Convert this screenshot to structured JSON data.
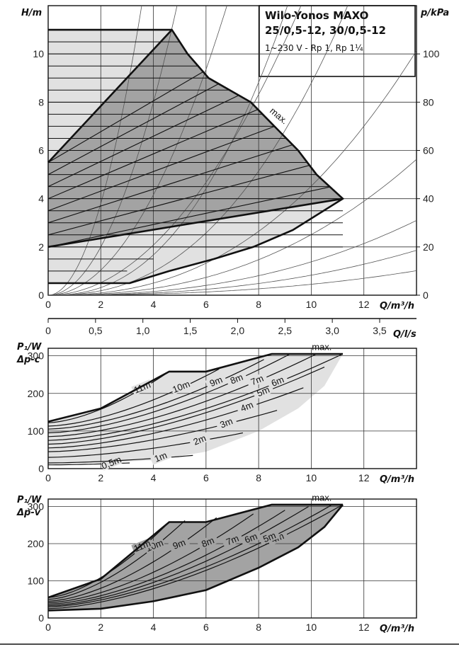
{
  "chart_data": [
    {
      "type": "line",
      "panel": "head",
      "title": "Wilo-Yonos MAXO",
      "subtitle": "25/0,5-12, 30/0,5-12",
      "spec": "1~230 V - Rp 1, Rp 1¼",
      "xlabel": "Q/m³/h",
      "ylabel": "H/m",
      "y2label": "p/kPa",
      "xlim": [
        0,
        14
      ],
      "ylim": [
        0,
        12
      ],
      "y2lim": [
        0,
        120
      ],
      "xticks": [
        0,
        2,
        4,
        6,
        8,
        10,
        12
      ],
      "yticks": [
        0,
        2,
        4,
        6,
        8,
        10
      ],
      "y2ticks": [
        0,
        20,
        40,
        60,
        80,
        100
      ],
      "grid": true,
      "max_label": "max.",
      "max_curve": [
        [
          4.7,
          11.0
        ],
        [
          5.3,
          10.0
        ],
        [
          6.1,
          9.0
        ],
        [
          7.7,
          8.0
        ],
        [
          8.6,
          7.0
        ],
        [
          9.5,
          6.0
        ],
        [
          10.2,
          5.0
        ],
        [
          11.2,
          4.0
        ]
      ],
      "delta_p_c_band_upper": [
        [
          0,
          5.5
        ],
        [
          4.7,
          11.0
        ]
      ],
      "delta_p_c_band_lower": [
        [
          0,
          2.0
        ],
        [
          11.2,
          4.0
        ]
      ],
      "delta_p_v_band_lower": [
        [
          0,
          0.5
        ],
        [
          3.1,
          0.5
        ],
        [
          4.6,
          1.0
        ],
        [
          6.3,
          1.5
        ],
        [
          7.8,
          2.0
        ],
        [
          9.3,
          2.7
        ],
        [
          11.2,
          4.0
        ]
      ],
      "setpoints_m": [
        0.5,
        1,
        1.5,
        2,
        2.5,
        3,
        3.5,
        4,
        4.5,
        5,
        5.5,
        6,
        6.5,
        7,
        7.5,
        8,
        8.5,
        9,
        9.5,
        10,
        10.5,
        11
      ]
    },
    {
      "type": "line",
      "panel": "flow_ls_axis",
      "xlabel": "Q/l/s",
      "xlim": [
        0,
        3.889
      ],
      "xticks": [
        0,
        0.5,
        1.0,
        1.5,
        2.0,
        2.5,
        3.0,
        3.5
      ],
      "xticklabels": [
        "0",
        "0,5",
        "1,0",
        "1,5",
        "2,0",
        "2,5",
        "3,0",
        "3,5"
      ]
    },
    {
      "type": "line",
      "panel": "power_dp_c",
      "ylabel": "P₁/W",
      "ylabel2": "Δp-c",
      "xlabel": "Q/m³/h",
      "xlim": [
        0,
        14
      ],
      "ylim": [
        0,
        320
      ],
      "xticks": [
        0,
        2,
        4,
        6,
        8,
        10,
        12
      ],
      "yticks": [
        0,
        100,
        200,
        300
      ],
      "grid": true,
      "max_label": "max.",
      "envelope_top": [
        [
          0,
          125
        ],
        [
          2,
          160
        ],
        [
          4.6,
          258
        ],
        [
          6,
          258
        ],
        [
          8.5,
          305
        ],
        [
          11.2,
          305
        ]
      ],
      "envelope_bottom": [
        [
          0,
          12
        ],
        [
          2,
          16
        ],
        [
          4,
          22
        ],
        [
          6,
          45
        ],
        [
          8,
          100
        ],
        [
          9.5,
          160
        ],
        [
          10.5,
          220
        ],
        [
          11.2,
          305
        ]
      ],
      "series": [
        {
          "name": "0,5m",
          "values": [
            [
              0,
              10
            ],
            [
              3.1,
              15
            ]
          ]
        },
        {
          "name": "1m",
          "values": [
            [
              0,
              15
            ],
            [
              5.5,
              35
            ]
          ]
        },
        {
          "name": "2m",
          "values": [
            [
              0,
              30
            ],
            [
              7.4,
              95
            ]
          ]
        },
        {
          "name": "3m",
          "values": [
            [
              0,
              45
            ],
            [
              8.7,
              155
            ]
          ]
        },
        {
          "name": "4m",
          "values": [
            [
              0,
              55
            ],
            [
              9.7,
              215
            ]
          ]
        },
        {
          "name": "5m",
          "values": [
            [
              0,
              65
            ],
            [
              10.5,
              270
            ]
          ]
        },
        {
          "name": "6m",
          "values": [
            [
              0,
              75
            ],
            [
              11.2,
              305
            ]
          ]
        },
        {
          "name": "7m",
          "values": [
            [
              0,
              85
            ],
            [
              10.2,
              305
            ]
          ]
        },
        {
          "name": "8m",
          "values": [
            [
              0,
              95
            ],
            [
              9.2,
              305
            ]
          ]
        },
        {
          "name": "9m",
          "values": [
            [
              0,
              105
            ],
            [
              8.2,
              290
            ]
          ]
        },
        {
          "name": "10m",
          "values": [
            [
              0,
              113
            ],
            [
              6.5,
              265
            ]
          ]
        },
        {
          "name": "11m",
          "values": [
            [
              0,
              122
            ],
            [
              4.6,
              258
            ]
          ]
        }
      ]
    },
    {
      "type": "line",
      "panel": "power_dp_v",
      "ylabel": "P₁/W",
      "ylabel2": "Δp-v",
      "xlabel": "Q/m³/h",
      "xlim": [
        0,
        14
      ],
      "ylim": [
        0,
        320
      ],
      "xticks": [
        0,
        2,
        4,
        6,
        8,
        10,
        12
      ],
      "yticks": [
        0,
        100,
        200,
        300
      ],
      "grid": true,
      "max_label": "max.",
      "envelope_top": [
        [
          0,
          55
        ],
        [
          2,
          105
        ],
        [
          4.6,
          258
        ],
        [
          6,
          258
        ],
        [
          8.5,
          305
        ],
        [
          11.2,
          305
        ]
      ],
      "envelope_bottom": [
        [
          0,
          20
        ],
        [
          2,
          25
        ],
        [
          4,
          45
        ],
        [
          6,
          75
        ],
        [
          8,
          135
        ],
        [
          9.5,
          190
        ],
        [
          10.5,
          245
        ],
        [
          11.2,
          305
        ]
      ],
      "series": [
        {
          "name": "4m",
          "values": [
            [
              0,
              25
            ],
            [
              11.2,
              305
            ]
          ]
        },
        {
          "name": "5m",
          "values": [
            [
              0,
              30
            ],
            [
              10.8,
              305
            ]
          ]
        },
        {
          "name": "6m",
          "values": [
            [
              0,
              33
            ],
            [
              9.9,
              300
            ]
          ]
        },
        {
          "name": "7m",
          "values": [
            [
              0,
              37
            ],
            [
              9.0,
              290
            ]
          ]
        },
        {
          "name": "8m",
          "values": [
            [
              0,
              41
            ],
            [
              7.8,
              280
            ]
          ]
        },
        {
          "name": "9m",
          "values": [
            [
              0,
              45
            ],
            [
              6.4,
              270
            ]
          ]
        },
        {
          "name": "10m",
          "values": [
            [
              0,
              50
            ],
            [
              5.2,
              262
            ]
          ]
        },
        {
          "name": "11m",
          "values": [
            [
              0,
              55
            ],
            [
              4.6,
              258
            ]
          ]
        }
      ]
    }
  ],
  "labels": {
    "p1_w": "P₁/W",
    "dp_c": "Δp-c",
    "dp_v": "Δp-v",
    "max": "max.",
    "qm3h": "Q/m³/h",
    "qls": "Q/l/s"
  },
  "colors": {
    "dark_fill": "#a3a3a3",
    "light_fill": "#e1e1e1",
    "line": "#111111",
    "grid": "#333333"
  }
}
